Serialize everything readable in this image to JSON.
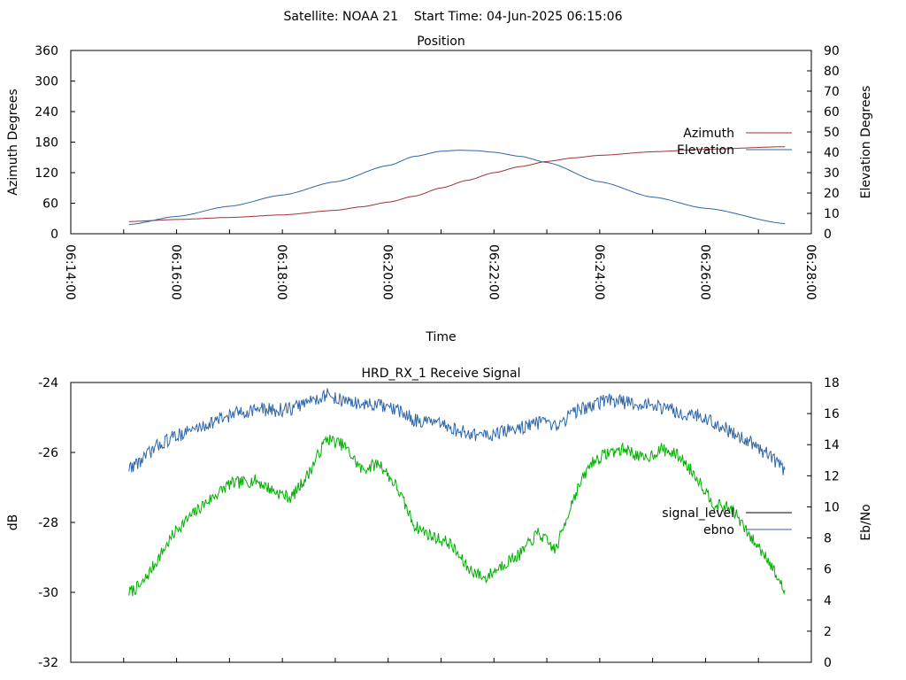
{
  "page": {
    "title": "Satellite: NOAA 21    Start Time: 04-Jun-2025 06:15:06"
  },
  "colors": {
    "azimuth": "#a0303a",
    "elevation": "#2e66a8",
    "signal_level": "#000000",
    "signal_trace": "#00b000",
    "ebno": "#2e66a8"
  },
  "chart_data": [
    {
      "type": "line",
      "title": "Position",
      "xlabel": "Time",
      "ylabel": "Azimuth Degrees",
      "y2label": "Elevation Degrees",
      "xlim": [
        "06:14:00",
        "06:28:00"
      ],
      "xticks": [
        "06:14:00",
        "06:16:00",
        "06:18:00",
        "06:20:00",
        "06:22:00",
        "06:24:00",
        "06:26:00",
        "06:28:00"
      ],
      "ylim": [
        0,
        360
      ],
      "yticks": [
        0,
        60,
        120,
        180,
        240,
        300,
        360
      ],
      "y2lim": [
        0,
        90
      ],
      "y2ticks": [
        0,
        10,
        20,
        30,
        40,
        50,
        60,
        70,
        80,
        90
      ],
      "legend_position": "right",
      "grid": false,
      "series": [
        {
          "name": "Azimuth",
          "axis": "left",
          "color": "#a0303a",
          "x": [
            "06:15:06",
            "06:16:00",
            "06:17:00",
            "06:18:00",
            "06:19:00",
            "06:19:30",
            "06:20:00",
            "06:20:30",
            "06:21:00",
            "06:21:30",
            "06:22:00",
            "06:22:30",
            "06:23:00",
            "06:23:30",
            "06:24:00",
            "06:25:00",
            "06:26:00",
            "06:27:30"
          ],
          "values": [
            24,
            28,
            32,
            37,
            46,
            53,
            62,
            74,
            90,
            105,
            120,
            132,
            142,
            149,
            154,
            161,
            166,
            171
          ]
        },
        {
          "name": "Elevation",
          "axis": "right",
          "color": "#2e66a8",
          "x": [
            "06:15:06",
            "06:16:00",
            "06:17:00",
            "06:18:00",
            "06:19:00",
            "06:20:00",
            "06:20:30",
            "06:21:00",
            "06:21:20",
            "06:21:40",
            "06:22:00",
            "06:22:30",
            "06:23:00",
            "06:24:00",
            "06:25:00",
            "06:26:00",
            "06:27:30"
          ],
          "values": [
            4.5,
            8.5,
            13.5,
            19,
            25.5,
            33.5,
            38,
            40.5,
            41,
            40.8,
            40,
            38,
            35,
            25.5,
            18,
            12.5,
            5
          ]
        }
      ]
    },
    {
      "type": "line",
      "title": "HRD_RX_1 Receive Signal",
      "xlabel": "",
      "ylabel": "dB",
      "y2label": "Eb/No",
      "xlim": [
        "06:14:00",
        "06:28:00"
      ],
      "ylim": [
        -32,
        -24
      ],
      "yticks": [
        -32,
        -30,
        -28,
        -26,
        -24
      ],
      "y2lim": [
        0,
        18
      ],
      "y2ticks": [
        0,
        2,
        4,
        6,
        8,
        10,
        12,
        14,
        16,
        18
      ],
      "legend_position": "right",
      "grid": false,
      "series": [
        {
          "name": "signal_level",
          "axis": "left",
          "color": "#00b000",
          "legend_color": "#000000",
          "x": [
            "06:15:06",
            "06:15:20",
            "06:15:40",
            "06:16:00",
            "06:16:30",
            "06:17:00",
            "06:17:30",
            "06:17:50",
            "06:18:10",
            "06:18:30",
            "06:18:50",
            "06:19:10",
            "06:19:30",
            "06:19:50",
            "06:20:10",
            "06:20:30",
            "06:20:50",
            "06:21:10",
            "06:21:30",
            "06:21:50",
            "06:22:10",
            "06:22:30",
            "06:22:50",
            "06:23:10",
            "06:23:30",
            "06:23:50",
            "06:24:10",
            "06:24:30",
            "06:24:50",
            "06:25:10",
            "06:25:30",
            "06:25:50",
            "06:26:10",
            "06:26:30",
            "06:26:50",
            "06:27:10",
            "06:27:30"
          ],
          "values": [
            -30.0,
            -29.8,
            -29.0,
            -28.2,
            -27.5,
            -26.9,
            -26.8,
            -27.1,
            -27.3,
            -26.6,
            -25.6,
            -25.8,
            -26.5,
            -26.3,
            -27.0,
            -28.1,
            -28.4,
            -28.6,
            -29.3,
            -29.6,
            -29.2,
            -28.9,
            -28.3,
            -28.8,
            -27.3,
            -26.3,
            -26.0,
            -25.9,
            -26.2,
            -25.9,
            -26.1,
            -26.7,
            -27.5,
            -27.6,
            -28.4,
            -29.0,
            -30.0
          ]
        },
        {
          "name": "ebno",
          "axis": "right",
          "color": "#2e66a8",
          "x": [
            "06:15:06",
            "06:15:20",
            "06:15:40",
            "06:16:00",
            "06:16:30",
            "06:17:00",
            "06:17:30",
            "06:17:50",
            "06:18:10",
            "06:18:30",
            "06:18:50",
            "06:19:10",
            "06:19:30",
            "06:19:50",
            "06:20:10",
            "06:20:30",
            "06:20:50",
            "06:21:10",
            "06:21:30",
            "06:21:50",
            "06:22:10",
            "06:22:30",
            "06:22:50",
            "06:23:10",
            "06:23:30",
            "06:23:50",
            "06:24:10",
            "06:24:30",
            "06:24:50",
            "06:25:10",
            "06:25:30",
            "06:25:50",
            "06:26:10",
            "06:26:30",
            "06:26:50",
            "06:27:10",
            "06:27:30"
          ],
          "values": [
            12.5,
            13.0,
            14.0,
            14.6,
            15.2,
            15.9,
            16.3,
            16.2,
            16.3,
            16.8,
            17.2,
            16.8,
            16.6,
            16.5,
            16.2,
            15.6,
            15.4,
            15.1,
            14.7,
            14.6,
            14.8,
            15.1,
            15.4,
            15.1,
            16.1,
            16.5,
            16.9,
            16.7,
            16.6,
            16.4,
            16.1,
            15.9,
            15.4,
            14.8,
            14.2,
            13.4,
            12.3
          ]
        }
      ]
    }
  ]
}
